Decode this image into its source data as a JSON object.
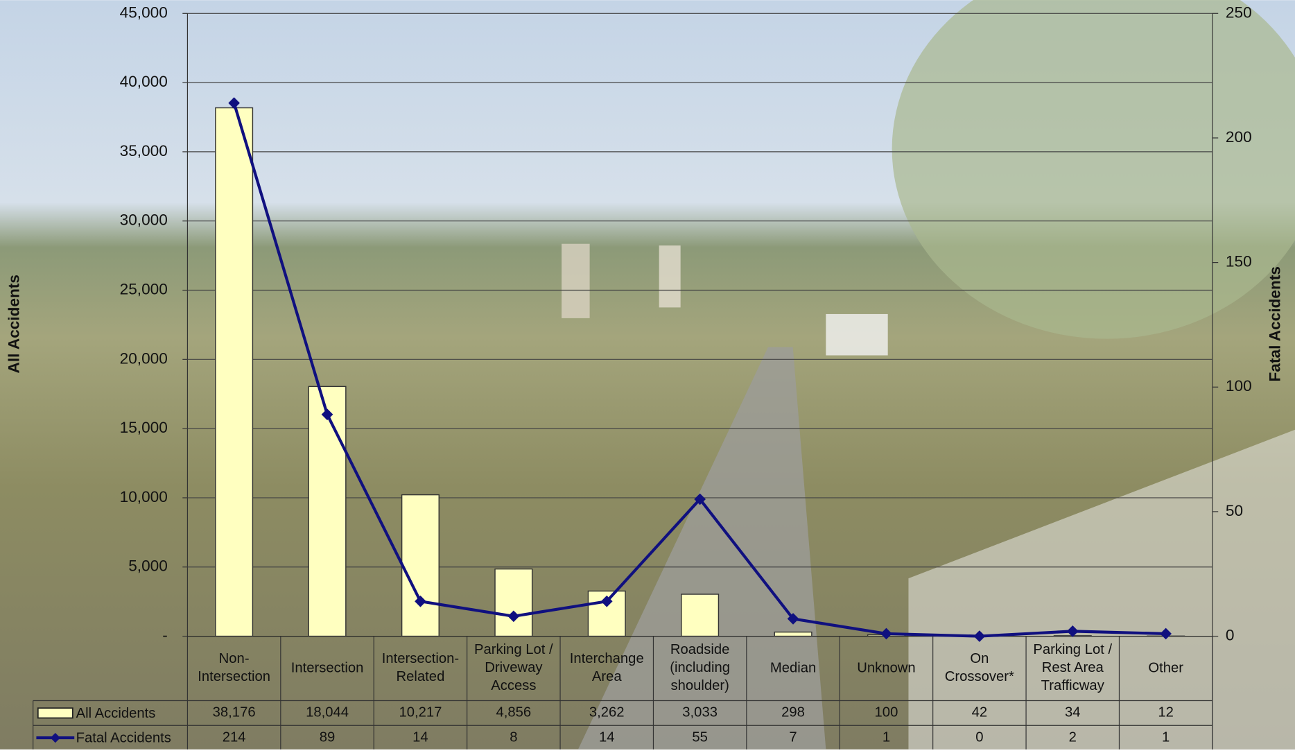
{
  "chart_data": {
    "type": "bar-line",
    "categories": [
      "Non-\nIntersection",
      "Intersection",
      "Intersection-\nRelated",
      "Parking Lot /\nDriveway\nAccess",
      "Interchange\nArea",
      "Roadside\n(including\nshoulder)",
      "Median",
      "Unknown",
      "On\nCrossover*",
      "Parking Lot /\nRest Area\nTrafficway",
      "Other"
    ],
    "series": [
      {
        "name": "All Accidents",
        "type": "bar",
        "color": "#ffffc0",
        "values": [
          38176,
          18044,
          10217,
          4856,
          3262,
          3033,
          298,
          100,
          42,
          34,
          12
        ],
        "value_labels": [
          "38,176",
          "18,044",
          "10,217",
          "4,856",
          "3,262",
          "3,033",
          "298",
          "100",
          "42",
          "34",
          "12"
        ]
      },
      {
        "name": "Fatal Accidents",
        "type": "line",
        "axis": "y2",
        "color": "#10107f",
        "values": [
          214,
          89,
          14,
          8,
          14,
          55,
          7,
          1,
          0,
          2,
          1
        ]
      }
    ],
    "y_label": "All Accidents",
    "y2_label": "Fatal Accidents",
    "ylim": [
      0,
      45000
    ],
    "yticks": [
      {
        "value": 0,
        "label": "-"
      },
      {
        "value": 5000,
        "label": "5,000"
      },
      {
        "value": 10000,
        "label": "10,000"
      },
      {
        "value": 15000,
        "label": "15,000"
      },
      {
        "value": 20000,
        "label": "20,000"
      },
      {
        "value": 25000,
        "label": "25,000"
      },
      {
        "value": 30000,
        "label": "30,000"
      },
      {
        "value": 35000,
        "label": "35,000"
      },
      {
        "value": 40000,
        "label": "40,000"
      },
      {
        "value": 45000,
        "label": "45,000"
      }
    ],
    "y2lim": [
      0,
      250
    ],
    "y2ticks": [
      0,
      50,
      100,
      150,
      200,
      250
    ],
    "grid": true
  }
}
